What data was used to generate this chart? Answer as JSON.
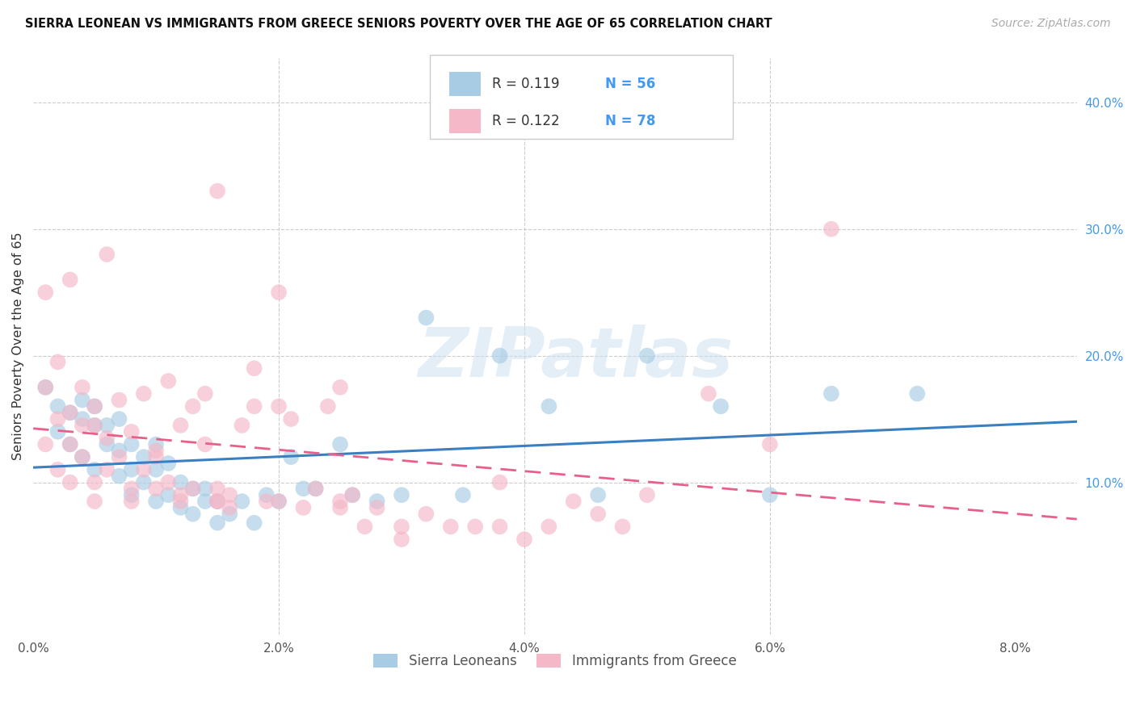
{
  "title": "SIERRA LEONEAN VS IMMIGRANTS FROM GREECE SENIORS POVERTY OVER THE AGE OF 65 CORRELATION CHART",
  "source": "Source: ZipAtlas.com",
  "ylabel": "Seniors Poverty Over the Age of 65",
  "xlim": [
    0.0,
    0.085
  ],
  "ylim": [
    -0.02,
    0.435
  ],
  "watermark": "ZIPatlas",
  "legend_r1": "R = 0.119",
  "legend_n1": "N = 56",
  "legend_r2": "R = 0.122",
  "legend_n2": "N = 78",
  "blue_color": "#a8cce4",
  "pink_color": "#f4b8c8",
  "trend_blue": "#3a7fc1",
  "trend_pink": "#e8608a",
  "rn_color": "#4499ee",
  "sl_x": [
    0.001,
    0.002,
    0.002,
    0.003,
    0.003,
    0.004,
    0.004,
    0.004,
    0.005,
    0.005,
    0.005,
    0.006,
    0.006,
    0.007,
    0.007,
    0.007,
    0.008,
    0.008,
    0.008,
    0.009,
    0.009,
    0.01,
    0.01,
    0.01,
    0.011,
    0.011,
    0.012,
    0.012,
    0.013,
    0.013,
    0.014,
    0.014,
    0.015,
    0.015,
    0.016,
    0.017,
    0.018,
    0.019,
    0.02,
    0.021,
    0.022,
    0.023,
    0.025,
    0.026,
    0.028,
    0.03,
    0.032,
    0.035,
    0.038,
    0.042,
    0.046,
    0.05,
    0.056,
    0.06,
    0.065,
    0.072
  ],
  "sl_y": [
    0.175,
    0.16,
    0.14,
    0.13,
    0.155,
    0.165,
    0.15,
    0.12,
    0.11,
    0.145,
    0.16,
    0.13,
    0.145,
    0.105,
    0.125,
    0.15,
    0.09,
    0.11,
    0.13,
    0.1,
    0.12,
    0.085,
    0.11,
    0.13,
    0.09,
    0.115,
    0.08,
    0.1,
    0.075,
    0.095,
    0.085,
    0.095,
    0.068,
    0.085,
    0.075,
    0.085,
    0.068,
    0.09,
    0.085,
    0.12,
    0.095,
    0.095,
    0.13,
    0.09,
    0.085,
    0.09,
    0.23,
    0.09,
    0.2,
    0.16,
    0.09,
    0.2,
    0.16,
    0.09,
    0.17,
    0.17
  ],
  "gr_x": [
    0.001,
    0.001,
    0.002,
    0.002,
    0.003,
    0.003,
    0.003,
    0.004,
    0.004,
    0.005,
    0.005,
    0.005,
    0.006,
    0.006,
    0.007,
    0.007,
    0.008,
    0.008,
    0.009,
    0.009,
    0.01,
    0.01,
    0.011,
    0.011,
    0.012,
    0.012,
    0.013,
    0.013,
    0.014,
    0.014,
    0.015,
    0.015,
    0.016,
    0.016,
    0.017,
    0.018,
    0.019,
    0.02,
    0.021,
    0.022,
    0.023,
    0.024,
    0.025,
    0.026,
    0.027,
    0.028,
    0.03,
    0.032,
    0.034,
    0.036,
    0.038,
    0.04,
    0.042,
    0.044,
    0.046,
    0.048,
    0.05,
    0.055,
    0.06,
    0.065,
    0.001,
    0.002,
    0.003,
    0.004,
    0.005,
    0.006,
    0.008,
    0.01,
    0.012,
    0.015,
    0.018,
    0.02,
    0.025,
    0.03,
    0.015,
    0.02,
    0.025,
    0.038
  ],
  "gr_y": [
    0.175,
    0.13,
    0.11,
    0.15,
    0.1,
    0.13,
    0.155,
    0.12,
    0.145,
    0.1,
    0.16,
    0.145,
    0.11,
    0.135,
    0.165,
    0.12,
    0.095,
    0.14,
    0.11,
    0.17,
    0.095,
    0.125,
    0.18,
    0.1,
    0.09,
    0.145,
    0.16,
    0.095,
    0.13,
    0.17,
    0.095,
    0.085,
    0.08,
    0.09,
    0.145,
    0.16,
    0.085,
    0.085,
    0.15,
    0.08,
    0.095,
    0.16,
    0.08,
    0.09,
    0.065,
    0.08,
    0.055,
    0.075,
    0.065,
    0.065,
    0.065,
    0.055,
    0.065,
    0.085,
    0.075,
    0.065,
    0.09,
    0.17,
    0.13,
    0.3,
    0.25,
    0.195,
    0.26,
    0.175,
    0.085,
    0.28,
    0.085,
    0.12,
    0.085,
    0.085,
    0.19,
    0.16,
    0.085,
    0.065,
    0.33,
    0.25,
    0.175,
    0.1
  ]
}
